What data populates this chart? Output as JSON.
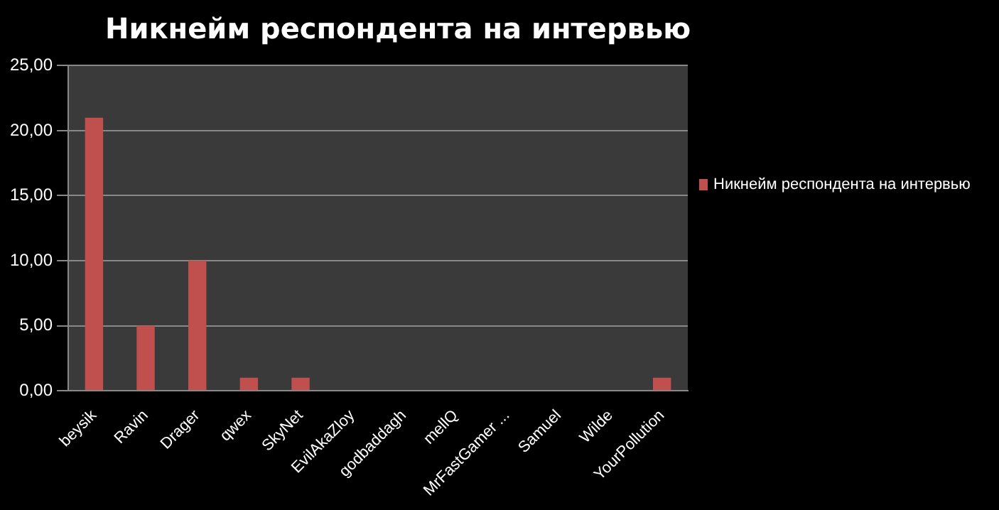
{
  "chart_data": {
    "type": "bar",
    "title": "Никнейм респондента на интервью",
    "categories": [
      "beysik",
      "Ravin",
      "Drager",
      "qwex",
      "SkyNet",
      "EvilAkaZloy",
      "godbaddagh",
      "mellQ",
      "MrFastGamer ...",
      "Samuel",
      "Wilde",
      "YourPollution"
    ],
    "series": [
      {
        "name": "Никнейм респондента на интервью",
        "color": "#c0504d",
        "values": [
          21,
          5,
          10,
          1,
          1,
          0,
          0,
          0,
          0,
          0,
          0,
          1
        ]
      }
    ],
    "ylim": [
      0,
      25
    ],
    "yticks": [
      {
        "value": 0,
        "label": "0,00"
      },
      {
        "value": 5,
        "label": "5,00"
      },
      {
        "value": 10,
        "label": "10,00"
      },
      {
        "value": 15,
        "label": "15,00"
      },
      {
        "value": 20,
        "label": "20,00"
      },
      {
        "value": 25,
        "label": "25,00"
      }
    ],
    "grid": "y",
    "legend": "right"
  }
}
